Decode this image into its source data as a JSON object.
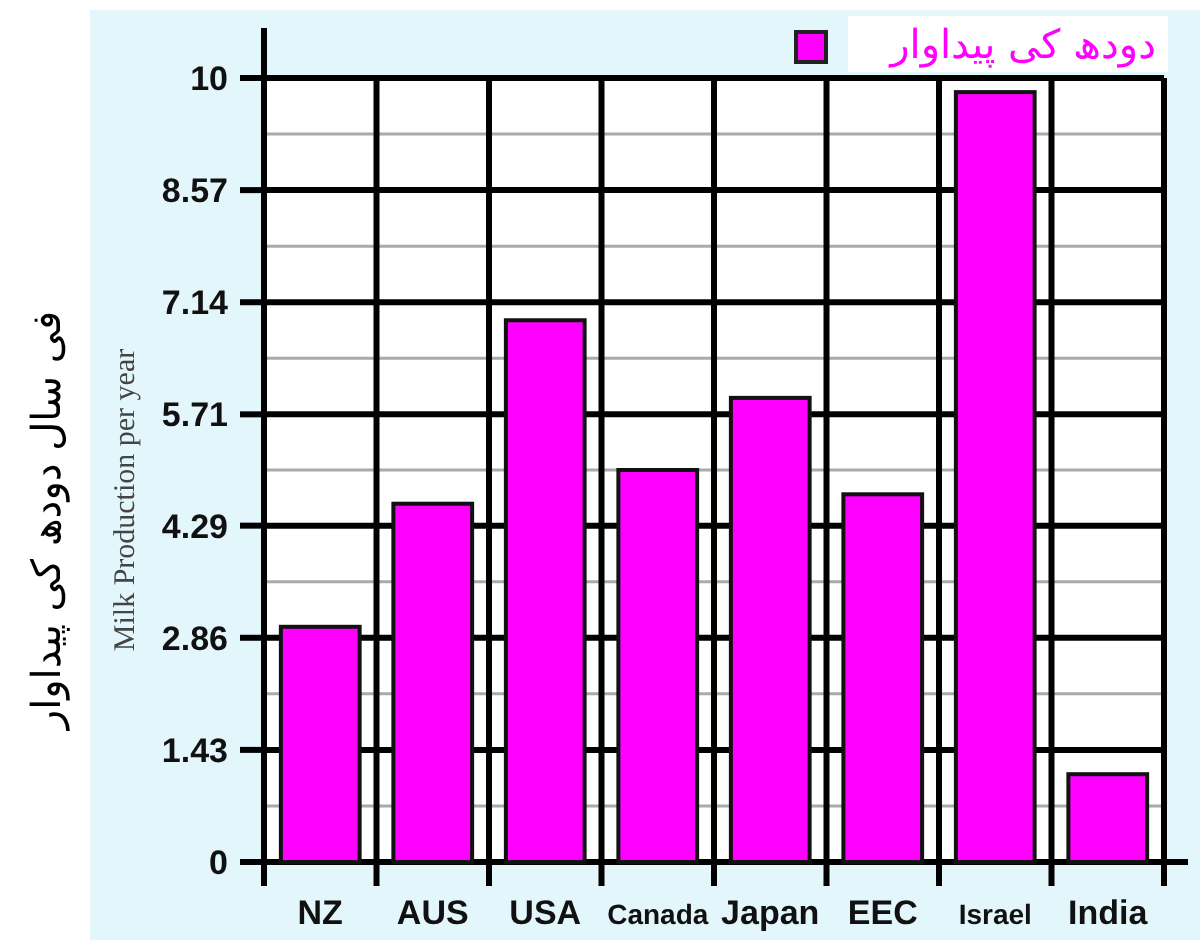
{
  "chart_data": {
    "type": "bar",
    "ylabel": "Milk Production per year",
    "annotations": [
      "فی سال دودھ کی پیداوار"
    ],
    "categories": [
      "NZ",
      "AUS",
      "USA",
      "Canada",
      "Japan",
      "EEC",
      "Israel",
      "India"
    ],
    "series": [
      {
        "name": "دودھ کی پیداوار",
        "color": "#ff00ff",
        "values": [
          3.0,
          4.57,
          6.91,
          5.0,
          5.92,
          4.69,
          9.82,
          1.12
        ]
      }
    ],
    "ylim": [
      0,
      10
    ],
    "yticks": [
      0,
      {
        "value": 0.715,
        "label": null
      },
      1.43,
      {
        "value": 2.145,
        "label": null
      },
      2.86,
      {
        "value": 3.575,
        "label": null
      },
      4.29,
      {
        "value": 5.0,
        "label": null
      },
      5.71,
      {
        "value": 6.425,
        "label": null
      },
      7.14,
      {
        "value": 7.855,
        "label": null
      },
      8.57,
      {
        "value": 9.285,
        "label": null
      },
      10
    ],
    "grid": true,
    "legend": "top right"
  }
}
